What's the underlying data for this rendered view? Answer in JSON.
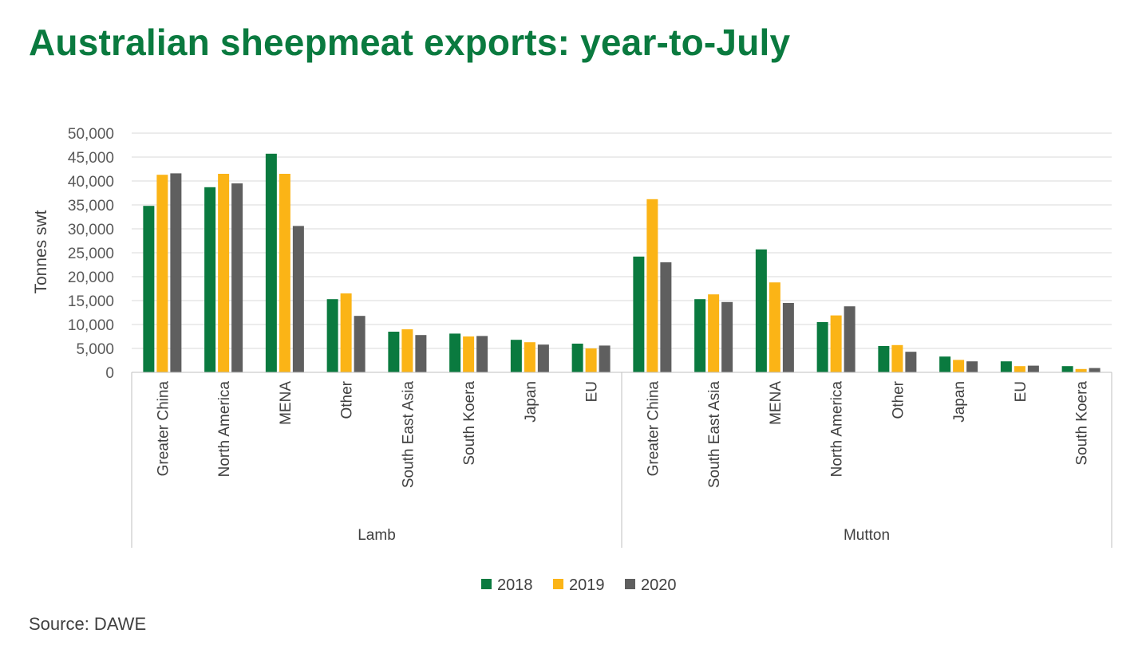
{
  "title": "Australian sheepmeat exports: year-to-July",
  "source": "Source: DAWE",
  "colors": {
    "2018": "#0a7a3f",
    "2019": "#fbb416",
    "2020": "#5f5f5f",
    "title": "#0a7a3f"
  },
  "chart_data": {
    "type": "bar",
    "ylabel": "Tonnes swt",
    "ylim": [
      0,
      50000
    ],
    "y_ticks": [
      "0",
      "5,000",
      "10,000",
      "15,000",
      "20,000",
      "25,000",
      "30,000",
      "35,000",
      "40,000",
      "45,000",
      "50,000"
    ],
    "grid": true,
    "legend_position": "bottom",
    "groups": [
      {
        "name": "Lamb",
        "categories": [
          "Greater China",
          "North America",
          "MENA",
          "Other",
          "South East Asia",
          "South Koera",
          "Japan",
          "EU"
        ]
      },
      {
        "name": "Mutton",
        "categories": [
          "Greater China",
          "South East Asia",
          "MENA",
          "North America",
          "Other",
          "Japan",
          "EU",
          "South Koera"
        ]
      }
    ],
    "series": [
      {
        "name": "2018",
        "values": [
          34800,
          38700,
          45700,
          15300,
          8500,
          8100,
          6800,
          6000,
          24200,
          15300,
          25700,
          10500,
          5500,
          3300,
          2300,
          1300
        ]
      },
      {
        "name": "2019",
        "values": [
          41300,
          41500,
          41500,
          16500,
          9000,
          7500,
          6300,
          5000,
          36200,
          16300,
          18800,
          11900,
          5700,
          2600,
          1300,
          700
        ]
      },
      {
        "name": "2020",
        "values": [
          41600,
          39500,
          30600,
          11800,
          7800,
          7600,
          5800,
          5600,
          23000,
          14700,
          14500,
          13800,
          4300,
          2300,
          1400,
          900
        ]
      }
    ]
  }
}
